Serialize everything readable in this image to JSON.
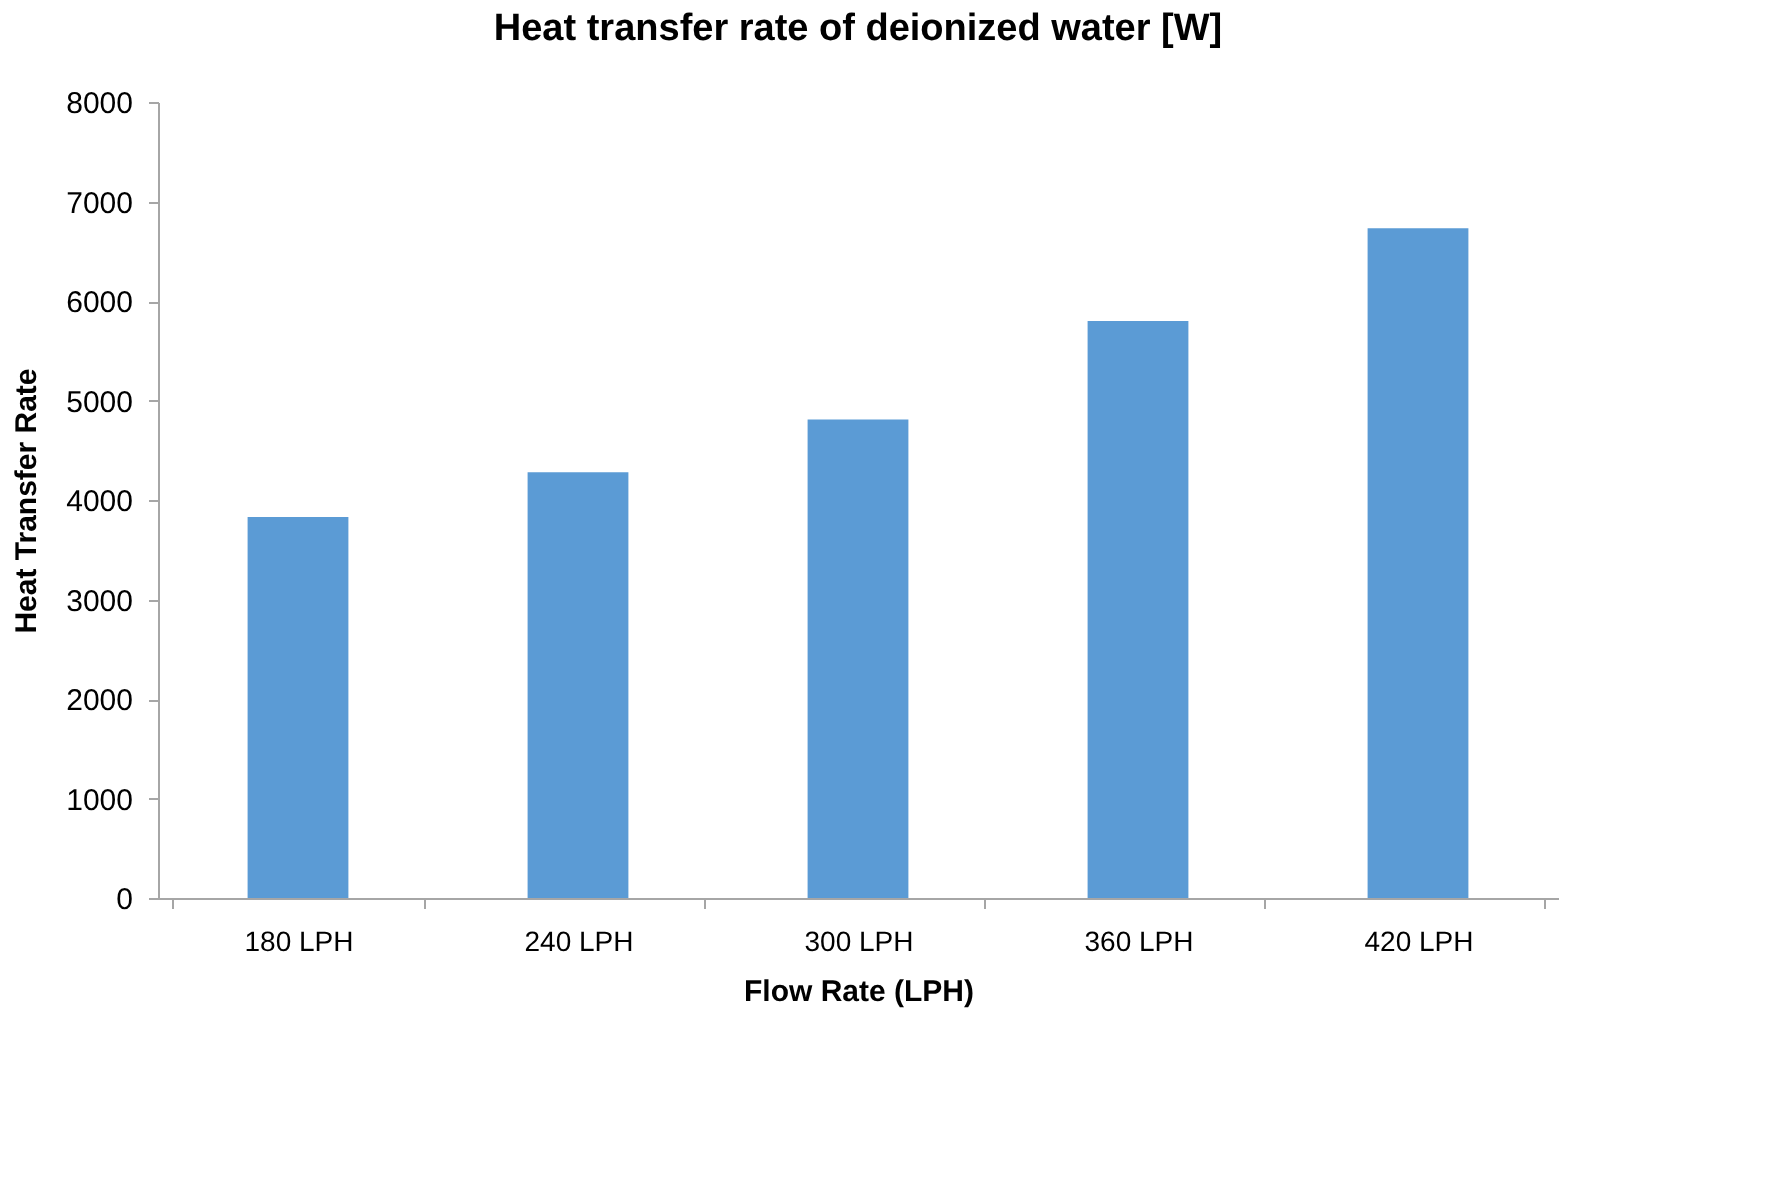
{
  "chart_data": {
    "type": "bar",
    "title": "Heat transfer rate of deionized water [W]",
    "xlabel": "Flow Rate (LPH)",
    "ylabel": "Heat Transfer Rate",
    "categories": [
      "180  LPH",
      "240  LPH",
      "300  LPH",
      "360  LPH",
      "420  LPH"
    ],
    "values": [
      3830,
      4280,
      4810,
      5800,
      6730
    ],
    "color": "#5b9bd5",
    "ylim": [
      0,
      8000
    ],
    "yticks": [
      0,
      1000,
      2000,
      3000,
      4000,
      5000,
      6000,
      7000,
      8000
    ],
    "grid": false
  }
}
